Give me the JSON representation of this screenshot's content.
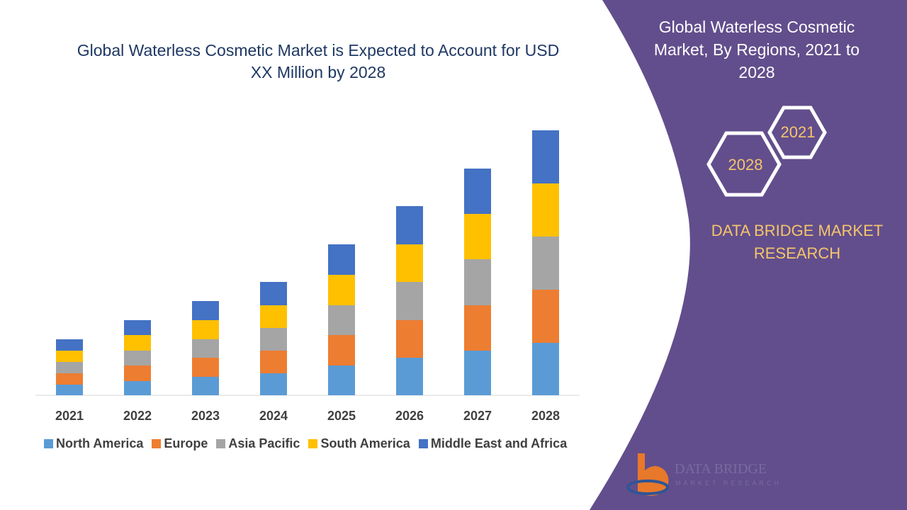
{
  "chart_data": {
    "type": "stacked-bar",
    "title": "Global Waterless Cosmetic Market is Expected to Account for USD XX Million by 2028",
    "categories": [
      "2021",
      "2022",
      "2023",
      "2024",
      "2025",
      "2026",
      "2027",
      "2028"
    ],
    "series": [
      {
        "name": "North America",
        "color": "#5b9bd5",
        "values": [
          15,
          20,
          26,
          31,
          42,
          53,
          63,
          74
        ]
      },
      {
        "name": "Europe",
        "color": "#ed7d31",
        "values": [
          16,
          22,
          27,
          32,
          43,
          53,
          64,
          75
        ]
      },
      {
        "name": "Asia Pacific",
        "color": "#a5a5a5",
        "values": [
          16,
          21,
          26,
          32,
          42,
          54,
          65,
          75
        ]
      },
      {
        "name": "South America",
        "color": "#ffc000",
        "values": [
          16,
          22,
          27,
          32,
          43,
          53,
          64,
          75
        ]
      },
      {
        "name": "Middle East and Africa",
        "color": "#4472c4",
        "values": [
          16,
          21,
          27,
          33,
          43,
          54,
          64,
          75
        ]
      }
    ]
  },
  "panel": {
    "title": "Global Waterless Cosmetic Market, By Regions, 2021 to 2028",
    "hex_labels": [
      "2021",
      "2028"
    ],
    "brand": "DATA BRIDGE MARKET RESEARCH",
    "logo": {
      "name": "DATA BRIDGE",
      "tagline": "MARKET RESEARCH"
    }
  }
}
